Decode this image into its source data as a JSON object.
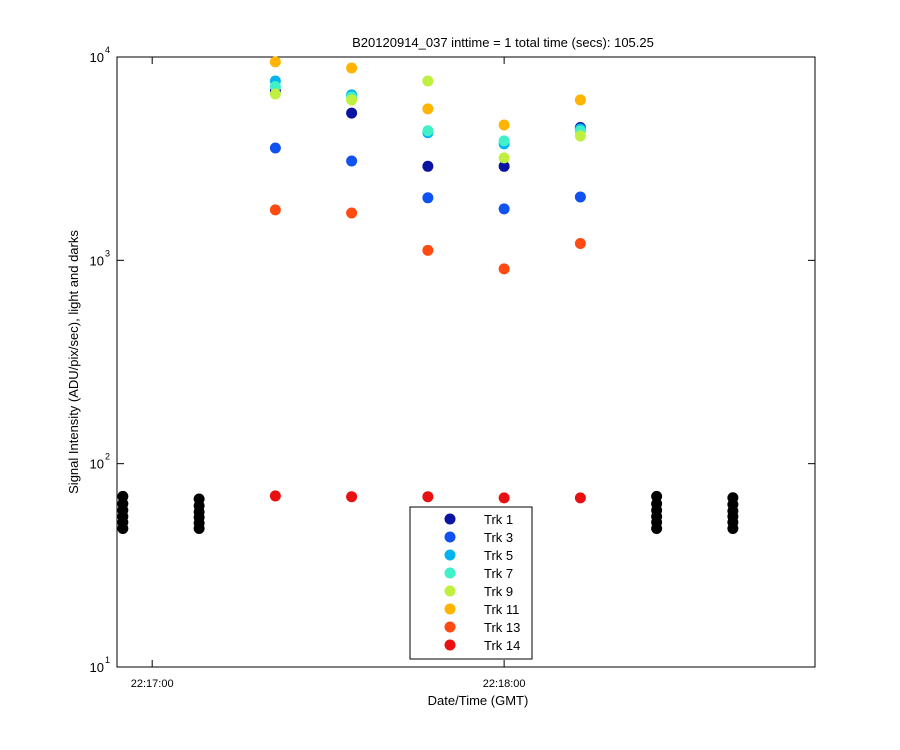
{
  "chart_data": {
    "type": "scatter",
    "title": "B20120914_037 inttime = 1 total time (secs): 105.25",
    "xlabel": "Date/Time (GMT)",
    "ylabel": "Signal Intensity (ADU/pix/sec), light and darks",
    "xlim": [
      "22:16:54",
      "22:18:53"
    ],
    "xticks": [
      "22:17:00",
      "22:18:00"
    ],
    "ylim": [
      10,
      10000
    ],
    "yticks": [
      {
        "value": 10,
        "label": "10",
        "power": "1"
      },
      {
        "value": 100,
        "label": "10",
        "power": "2"
      },
      {
        "value": 1000,
        "label": "10",
        "power": "3"
      },
      {
        "value": 10000,
        "label": "10",
        "power": "4"
      }
    ],
    "log_y": true,
    "legend": "south",
    "series": [
      {
        "color": "#000000",
        "x": [
          "22:16:55",
          "22:16:55",
          "22:16:55",
          "22:16:55",
          "22:16:55",
          "22:16:55",
          "22:17:08",
          "22:17:08",
          "22:17:08",
          "22:17:08",
          "22:17:08",
          "22:17:08",
          "22:18:26",
          "22:18:26",
          "22:18:26",
          "22:18:26",
          "22:18:26",
          "22:18:26",
          "22:18:39",
          "22:18:39",
          "22:18:39",
          "22:18:39",
          "22:18:39",
          "22:18:39"
        ],
        "values": [
          69,
          63.5,
          59,
          55,
          51.5,
          48,
          67,
          62,
          58,
          54.5,
          51,
          48,
          69,
          63.5,
          59,
          55,
          51.5,
          48,
          68,
          63,
          58.5,
          55,
          51.5,
          48
        ]
      },
      {
        "name": "Trk 1",
        "color": "#0a14a0",
        "x": [
          "22:17:21",
          "22:17:34",
          "22:17:47",
          "22:18:00",
          "22:18:13"
        ],
        "values": [
          6800,
          5300,
          2900,
          2900,
          4500
        ]
      },
      {
        "name": "Trk 3",
        "color": "#0f52f0",
        "x": [
          "22:17:21",
          "22:17:34",
          "22:17:47",
          "22:18:00",
          "22:18:13"
        ],
        "values": [
          3570,
          3080,
          2030,
          1790,
          2050
        ]
      },
      {
        "name": "Trk 5",
        "color": "#00b4f0",
        "x": [
          "22:17:21",
          "22:17:34",
          "22:17:47",
          "22:18:00",
          "22:18:13"
        ],
        "values": [
          7620,
          6510,
          4240,
          3740,
          4430
        ]
      },
      {
        "name": "Trk 7",
        "color": "#40f0c8",
        "x": [
          "22:17:21",
          "22:17:34",
          "22:17:47",
          "22:18:00",
          "22:18:13"
        ],
        "values": [
          7160,
          6360,
          4340,
          3870,
          4340
        ]
      },
      {
        "name": "Trk 9",
        "color": "#bff040",
        "x": [
          "22:17:21",
          "22:17:34",
          "22:17:47",
          "22:18:00",
          "22:18:13"
        ],
        "values": [
          6580,
          6150,
          7620,
          3190,
          4090
        ]
      },
      {
        "name": "Trk 11",
        "color": "#ffb400",
        "x": [
          "22:17:21",
          "22:17:34",
          "22:17:47",
          "22:18:00",
          "22:18:13"
        ],
        "values": [
          9460,
          8830,
          5560,
          4630,
          6150
        ]
      },
      {
        "name": "Trk 13",
        "color": "#ff4a12",
        "x": [
          "22:17:21",
          "22:17:34",
          "22:17:47",
          "22:18:00",
          "22:18:13"
        ],
        "values": [
          1770,
          1710,
          1120,
          908,
          1210
        ]
      },
      {
        "name": "Trk 14",
        "color": "#e81010",
        "x": [
          "22:17:21",
          "22:17:34",
          "22:17:47",
          "22:18:00",
          "22:18:13"
        ],
        "values": [
          69.4,
          68.8,
          68.8,
          67.9,
          67.9
        ]
      }
    ]
  }
}
